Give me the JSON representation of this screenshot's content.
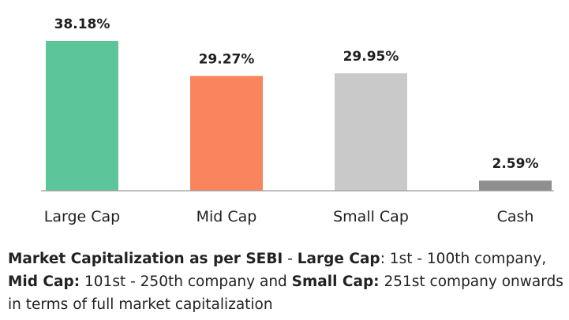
{
  "chart_data": {
    "type": "bar",
    "categories": [
      "Large Cap",
      "Mid Cap",
      "Small Cap",
      "Cash"
    ],
    "values": [
      38.18,
      29.27,
      29.95,
      2.59
    ],
    "value_labels": [
      "38.18%",
      "29.27%",
      "29.95%",
      "2.59%"
    ],
    "colors": [
      "#5cc59a",
      "#f9845d",
      "#c9c9c9",
      "#8f8f8f"
    ],
    "ylim": [
      0,
      40
    ],
    "grid": false,
    "legend": "none",
    "title": "",
    "xlabel": "",
    "ylabel": ""
  },
  "caption": {
    "segments": [
      {
        "text": "Market Capitalization as per SEBI",
        "bold": true
      },
      {
        "text": " - ",
        "bold": false
      },
      {
        "text": "Large Cap",
        "bold": true
      },
      {
        "text": ": 1st - 100th company, ",
        "bold": false
      },
      {
        "text": "Mid Cap:",
        "bold": true
      },
      {
        "text": " 101st - 250th company and ",
        "bold": false
      },
      {
        "text": "Small Cap:",
        "bold": true
      },
      {
        "text": " 251st company onwards in terms of full market capitalization",
        "bold": false
      }
    ]
  }
}
